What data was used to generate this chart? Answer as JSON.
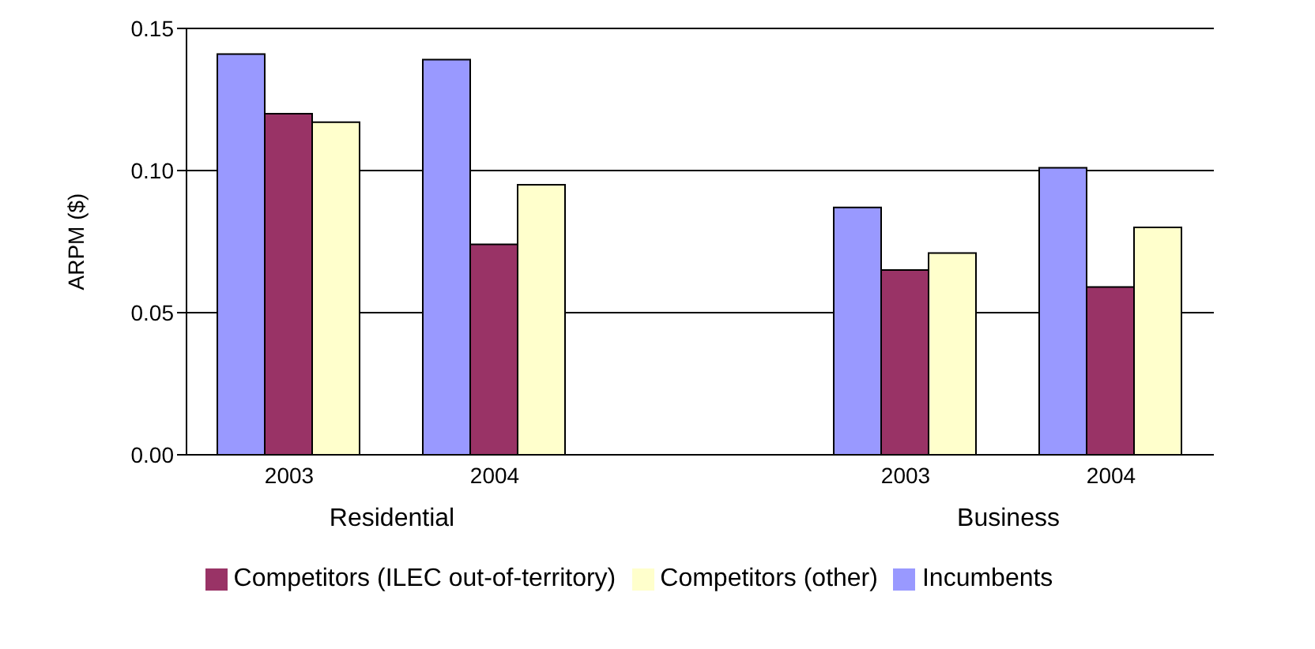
{
  "chart_data": {
    "type": "bar",
    "ylabel": "ARPM ($)",
    "categories": [
      "2003",
      "2004",
      null,
      "2003",
      "2004"
    ],
    "series": [
      {
        "name": "Incumbents",
        "color": "#9999ff",
        "values": [
          0.141,
          0.139,
          null,
          0.087,
          0.101
        ]
      },
      {
        "name": "Competitors (ILEC out-of-territory)",
        "color": "#993366",
        "values": [
          0.12,
          0.074,
          null,
          0.065,
          0.059
        ]
      },
      {
        "name": "Competitors (other)",
        "color": "#ffffcc",
        "values": [
          0.117,
          0.095,
          null,
          0.071,
          0.08
        ]
      }
    ],
    "ylim": [
      0,
      0.15
    ],
    "yticks": [
      {
        "value": 0,
        "label": "0.00"
      },
      {
        "value": 0.05,
        "label": "0.05"
      },
      {
        "value": 0.1,
        "label": "0.10"
      },
      {
        "value": 0.15,
        "label": "0.15"
      }
    ],
    "grid": "y",
    "legend": "bottom",
    "annotations": [
      "Residential",
      "Business"
    ]
  }
}
